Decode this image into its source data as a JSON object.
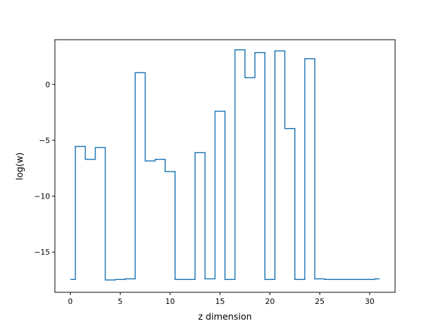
{
  "chart_data": {
    "type": "line",
    "drawstyle": "steps-mid",
    "xlabel": "z dimension",
    "ylabel": "log(w)",
    "xlim": [
      -1.55,
      32.55
    ],
    "ylim": [
      -18.6,
      4.0
    ],
    "xticks": [
      0,
      5,
      10,
      15,
      20,
      25,
      30
    ],
    "xtick_labels": [
      "0",
      "5",
      "10",
      "15",
      "20",
      "25",
      "30"
    ],
    "yticks": [
      -15,
      -10,
      -5,
      0
    ],
    "ytick_labels": [
      "−15",
      "−10",
      "−5",
      "0"
    ],
    "grid": false,
    "series": [
      {
        "color": "#1f77b4",
        "x": [
          0,
          1,
          2,
          3,
          4,
          5,
          6,
          7,
          8,
          9,
          10,
          11,
          12,
          13,
          14,
          15,
          16,
          17,
          18,
          19,
          20,
          21,
          22,
          23,
          24,
          25,
          26,
          27,
          28,
          29,
          30,
          31
        ],
        "y": [
          -17.45,
          -5.55,
          -6.7,
          -5.65,
          -17.5,
          -17.45,
          -17.4,
          1.05,
          -6.85,
          -6.7,
          -7.8,
          -17.45,
          -17.45,
          -6.1,
          -17.4,
          -2.4,
          -17.45,
          3.1,
          0.6,
          2.85,
          -17.45,
          3.0,
          -3.95,
          -17.45,
          2.3,
          -17.4,
          -17.45,
          -17.45,
          -17.45,
          -17.45,
          -17.45,
          -17.4
        ]
      }
    ]
  }
}
